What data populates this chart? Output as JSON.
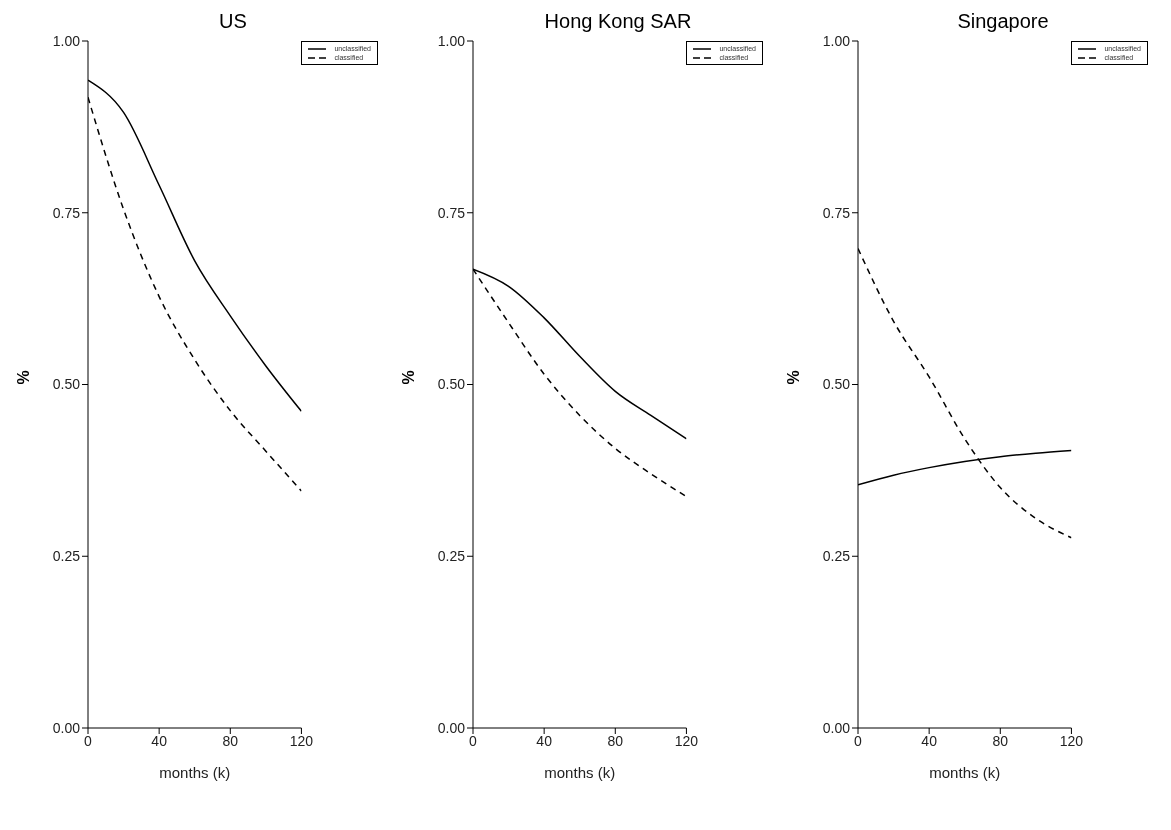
{
  "chart_data": [
    {
      "type": "line",
      "title": "US",
      "xlabel": "months (k)",
      "ylabel": "%",
      "x": [
        0,
        20,
        40,
        60,
        80,
        100,
        120
      ],
      "series": [
        {
          "name": "unclassified",
          "color": "#000000",
          "line_style": "solid",
          "values": [
            0.943,
            0.896,
            0.79,
            0.68,
            0.6,
            0.527,
            0.461
          ]
        },
        {
          "name": "classified",
          "color": "#000000",
          "line_style": "dashed",
          "values": [
            0.918,
            0.755,
            0.628,
            0.536,
            0.462,
            0.403,
            0.345
          ]
        }
      ],
      "xlim": [
        0,
        120
      ],
      "xticks": [
        0,
        40,
        80,
        120
      ],
      "ylim": [
        0,
        1
      ],
      "yticks": [
        {
          "value": 0,
          "label": "0.00"
        },
        {
          "value": 0.25,
          "label": "0.25"
        },
        {
          "value": 0.5,
          "label": "0.50"
        },
        {
          "value": 0.75,
          "label": "0.75"
        },
        {
          "value": 1,
          "label": "1.00"
        }
      ],
      "grid": false,
      "legend": "top right",
      "marker": "none"
    },
    {
      "type": "line",
      "title": "Hong Kong SAR",
      "xlabel": "months (k)",
      "ylabel": "%",
      "x": [
        0,
        20,
        40,
        60,
        80,
        100,
        120
      ],
      "series": [
        {
          "name": "unclassified",
          "color": "#000000",
          "line_style": "solid",
          "values": [
            0.668,
            0.643,
            0.597,
            0.541,
            0.49,
            0.455,
            0.421
          ]
        },
        {
          "name": "classified",
          "color": "#000000",
          "line_style": "dashed",
          "values": [
            0.668,
            0.59,
            0.515,
            0.455,
            0.407,
            0.37,
            0.337
          ]
        }
      ],
      "xlim": [
        0,
        120
      ],
      "xticks": [
        0,
        40,
        80,
        120
      ],
      "ylim": [
        0,
        1
      ],
      "yticks": [
        {
          "value": 0,
          "label": "0.00"
        },
        {
          "value": 0.25,
          "label": "0.25"
        },
        {
          "value": 0.5,
          "label": "0.50"
        },
        {
          "value": 0.75,
          "label": "0.75"
        },
        {
          "value": 1,
          "label": "1.00"
        }
      ],
      "grid": false,
      "legend": "top right",
      "marker": "none"
    },
    {
      "type": "line",
      "title": "Singapore",
      "xlabel": "months (k)",
      "ylabel": "%",
      "x": [
        0,
        20,
        40,
        60,
        80,
        100,
        120
      ],
      "series": [
        {
          "name": "unclassified",
          "color": "#000000",
          "line_style": "solid",
          "values": [
            0.354,
            0.368,
            0.379,
            0.388,
            0.395,
            0.4,
            0.404
          ]
        },
        {
          "name": "classified",
          "color": "#000000",
          "line_style": "dashed",
          "values": [
            0.698,
            0.592,
            0.511,
            0.421,
            0.35,
            0.305,
            0.277
          ]
        }
      ],
      "xlim": [
        0,
        120
      ],
      "xticks": [
        0,
        40,
        80,
        120
      ],
      "ylim": [
        0,
        1
      ],
      "yticks": [
        {
          "value": 0,
          "label": "0.00"
        },
        {
          "value": 0.25,
          "label": "0.25"
        },
        {
          "value": 0.5,
          "label": "0.50"
        },
        {
          "value": 0.75,
          "label": "0.75"
        },
        {
          "value": 1,
          "label": "1.00"
        }
      ],
      "grid": false,
      "legend": "top right",
      "marker": "none"
    }
  ]
}
